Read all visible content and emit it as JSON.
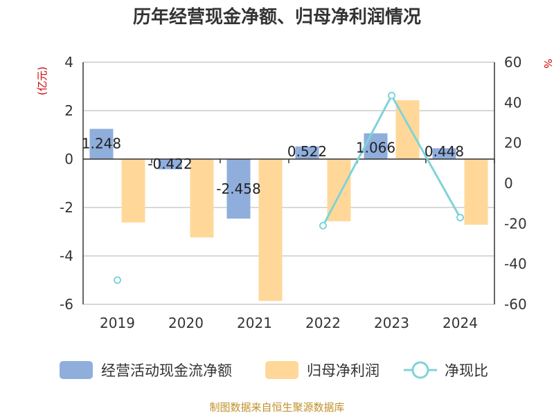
{
  "chart_data": {
    "type": "bar",
    "title": "历年经营现金净额、归母净利润情况",
    "categories": [
      "2019",
      "2020",
      "2021",
      "2022",
      "2023",
      "2024"
    ],
    "left_axis": {
      "unit": "(亿元)",
      "ylim": [
        -6,
        4
      ],
      "ticks": [
        4,
        2,
        0,
        -2,
        -4,
        -6
      ]
    },
    "right_axis": {
      "unit": "%",
      "ylim": [
        -60,
        60
      ],
      "ticks": [
        60,
        40,
        20,
        0,
        -20,
        -40,
        -60
      ]
    },
    "series": [
      {
        "name": "经营活动现金流净额",
        "type": "bar",
        "axis": "left",
        "values": [
          1.248,
          -0.422,
          -2.458,
          0.522,
          1.066,
          0.448
        ],
        "labels": [
          "1.248",
          "-0.422",
          "-2.458",
          "0.522",
          "1.066",
          "0.448"
        ]
      },
      {
        "name": "归母净利润",
        "type": "bar",
        "axis": "left",
        "values": [
          -2.62,
          -3.24,
          -5.86,
          -2.57,
          2.43,
          -2.71
        ]
      },
      {
        "name": "净现比",
        "type": "line",
        "axis": "right",
        "values": [
          -48,
          null,
          null,
          -21,
          43.5,
          -17
        ]
      }
    ],
    "colors": {
      "cash": "#8faedc",
      "profit": "#ffd899",
      "ratio": "#7fd3d9",
      "unit_left": "#cc0000",
      "unit_right": "#cc0000",
      "source": "#c0902a"
    },
    "grid": true,
    "legend": "bottom"
  },
  "source": "制图数据来自恒生聚源数据库"
}
